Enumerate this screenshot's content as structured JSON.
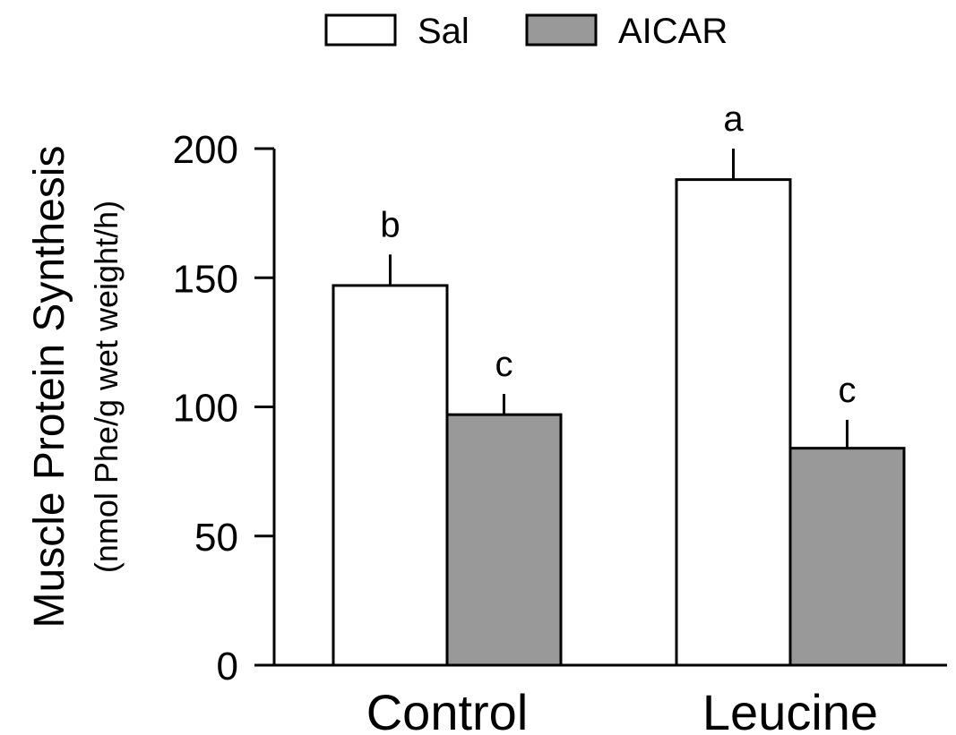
{
  "chart_data": {
    "type": "bar",
    "categories": [
      "Control",
      "Leucine"
    ],
    "series": [
      {
        "name": "Sal",
        "values": [
          147,
          188
        ],
        "errors": [
          12,
          12
        ],
        "letters": [
          "b",
          "a"
        ],
        "color": "#ffffff"
      },
      {
        "name": "AICAR",
        "values": [
          97,
          84
        ],
        "errors": [
          8,
          11
        ],
        "letters": [
          "c",
          "c"
        ],
        "color": "#999999"
      }
    ],
    "ylabel": "Muscle Protein Synthesis",
    "ylabel_units": "(nmol Phe/g wet weight/h)",
    "xlabel": "",
    "ylim": [
      0,
      200
    ],
    "yticks": [
      0,
      50,
      100,
      150,
      200
    ],
    "ytick_labels": [
      "0",
      "50",
      "100",
      "150",
      "200"
    ],
    "grid": false,
    "legend_position": "top"
  }
}
